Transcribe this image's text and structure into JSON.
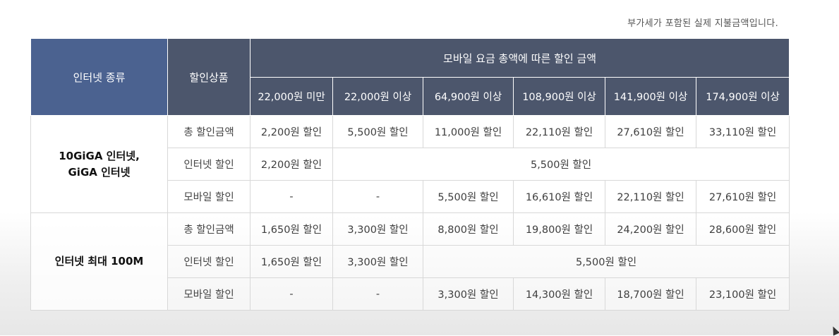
{
  "note": "부가세가 포함된 실제 지불금액입니다.",
  "header": {
    "internet_type": "인터넷 종류",
    "discount_product": "할인상품",
    "mobile_total": "모바일 요금 총액에 따른 할인 금액",
    "tiers": [
      "22,000원 미만",
      "22,000원 이상",
      "64,900원 이상",
      "108,900원 이상",
      "141,900원 이상",
      "174,900원 이상"
    ]
  },
  "groups": [
    {
      "name_line1": "10GiGA 인터넷,",
      "name_line2": "GiGA 인터넷",
      "rows": [
        {
          "kind": "총 할인금액",
          "values": [
            "2,200원 할인",
            "5,500원 할인",
            "11,000원 할인",
            "22,110원 할인",
            "27,610원 할인",
            "33,110원 할인"
          ]
        },
        {
          "kind": "인터넷 할인",
          "first": "2,200원 할인",
          "merged": "5,500원 할인"
        },
        {
          "kind": "모바일 할인",
          "values": [
            "-",
            "-",
            "5,500원 할인",
            "16,610원 할인",
            "22,110원 할인",
            "27,610원 할인"
          ]
        }
      ]
    },
    {
      "name": "인터넷 최대 100M",
      "rows": [
        {
          "kind": "총 할인금액",
          "values": [
            "1,650원 할인",
            "3,300원 할인",
            "8,800원 할인",
            "19,800원 할인",
            "24,200원 할인",
            "28,600원 할인"
          ]
        },
        {
          "kind": "인터넷 할인",
          "first": "1,650원 할인",
          "second": "3,300원 할인",
          "merged": "5,500원 할인"
        },
        {
          "kind": "모바일 할인",
          "values": [
            "-",
            "-",
            "3,300원 할인",
            "14,300원 할인",
            "18,700원 할인",
            "23,100원 할인"
          ]
        }
      ]
    }
  ]
}
